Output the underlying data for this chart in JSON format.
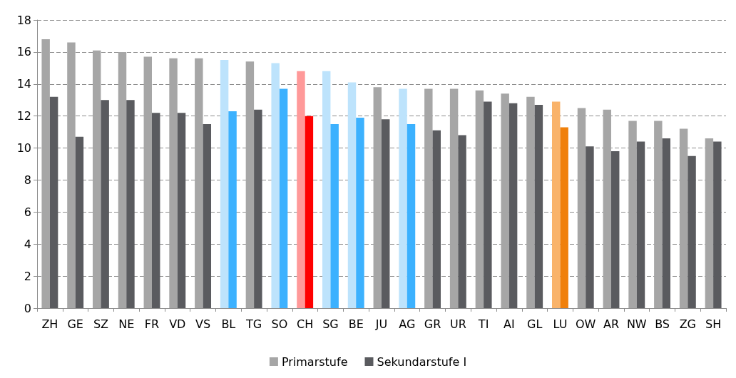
{
  "chart_data": {
    "type": "bar",
    "categories": [
      "ZH",
      "GE",
      "SZ",
      "NE",
      "FR",
      "VD",
      "VS",
      "BL",
      "TG",
      "SO",
      "CH",
      "SG",
      "BE",
      "JU",
      "AG",
      "GR",
      "UR",
      "TI",
      "AI",
      "GL",
      "LU",
      "OW",
      "AR",
      "NW",
      "BS",
      "ZG",
      "SH"
    ],
    "series": [
      {
        "name": "Primarstufe",
        "color": "#a6a6a6",
        "values": [
          16.8,
          16.6,
          16.1,
          16.0,
          15.7,
          15.6,
          15.6,
          15.5,
          15.4,
          15.3,
          14.8,
          14.8,
          14.1,
          13.8,
          13.7,
          13.7,
          13.7,
          13.6,
          13.4,
          13.2,
          12.9,
          12.5,
          12.4,
          11.7,
          11.7,
          11.2,
          10.6
        ],
        "colors": [
          "#a6a6a6",
          "#a6a6a6",
          "#a6a6a6",
          "#a6a6a6",
          "#a6a6a6",
          "#a6a6a6",
          "#a6a6a6",
          "#bde3fc",
          "#a6a6a6",
          "#bde3fc",
          "#ff9999",
          "#bde3fc",
          "#bde3fc",
          "#a6a6a6",
          "#bde3fc",
          "#a6a6a6",
          "#a6a6a6",
          "#a6a6a6",
          "#a6a6a6",
          "#a6a6a6",
          "#f9b36a",
          "#a6a6a6",
          "#a6a6a6",
          "#a6a6a6",
          "#a6a6a6",
          "#a6a6a6",
          "#a6a6a6"
        ]
      },
      {
        "name": "Sekundarstufe I",
        "color": "#5a5b5f",
        "values": [
          13.2,
          10.7,
          13.0,
          13.0,
          12.2,
          12.2,
          11.5,
          12.3,
          12.4,
          13.7,
          12.0,
          11.5,
          11.9,
          11.8,
          11.5,
          11.1,
          10.8,
          12.9,
          12.8,
          12.7,
          11.3,
          10.1,
          9.8,
          10.4,
          10.6,
          9.5,
          10.4
        ],
        "colors": [
          "#5a5b5f",
          "#5a5b5f",
          "#5a5b5f",
          "#5a5b5f",
          "#5a5b5f",
          "#5a5b5f",
          "#5a5b5f",
          "#3cb1fe",
          "#5a5b5f",
          "#3cb1fe",
          "#ff0000",
          "#3cb1fe",
          "#3cb1fe",
          "#5a5b5f",
          "#3cb1fe",
          "#5a5b5f",
          "#5a5b5f",
          "#5a5b5f",
          "#5a5b5f",
          "#5a5b5f",
          "#f0800b",
          "#5a5b5f",
          "#5a5b5f",
          "#5a5b5f",
          "#5a5b5f",
          "#5a5b5f",
          "#5a5b5f"
        ]
      }
    ],
    "ylim": [
      0,
      18
    ],
    "yticks": [
      0,
      2,
      4,
      6,
      8,
      10,
      12,
      14,
      16,
      18
    ],
    "grid": "y",
    "legend": "bottom"
  }
}
